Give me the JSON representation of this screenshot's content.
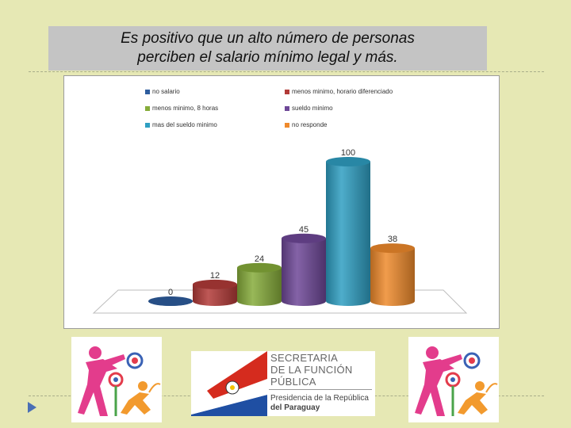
{
  "title": {
    "line1": "Es positivo que un alto número de personas",
    "line2": "perciben el salario mínimo legal y más."
  },
  "chart_data": {
    "type": "bar",
    "categories": [
      "no salario",
      "menos minimo, horario diferenciado",
      "menos minimo, 8 horas",
      "sueldo minimo",
      "mas del sueldo minimo",
      "no responde"
    ],
    "values": [
      0,
      12,
      24,
      45,
      100,
      38
    ],
    "ylim": [
      0,
      100
    ],
    "grid": false,
    "legend_position": "top",
    "series": [
      {
        "name": "no salario",
        "value": 0,
        "color": "#2e5d9e"
      },
      {
        "name": "menos minimo, horario diferenciado",
        "value": 12,
        "color": "#b23b38"
      },
      {
        "name": "menos minimo, 8 horas",
        "value": 24,
        "color": "#86ac3a"
      },
      {
        "name": "sueldo minimo",
        "value": 45,
        "color": "#6e4898"
      },
      {
        "name": "mas del sueldo minimo",
        "value": 100,
        "color": "#2f9fc2"
      },
      {
        "name": "no responde",
        "value": 38,
        "color": "#ef8a2c"
      }
    ]
  },
  "logos": {
    "sfp_line1": "SECRETARIA",
    "sfp_line2": "DE LA FUNCIÓN",
    "sfp_line3": "PÚBLICA",
    "presidencia_line1": "Presidencia de la República",
    "presidencia_line2": "del Paraguay"
  },
  "icons": {
    "nav_arrow": "triangle-right-icon",
    "logo_figures": "dancing-figures-logo-icon"
  }
}
